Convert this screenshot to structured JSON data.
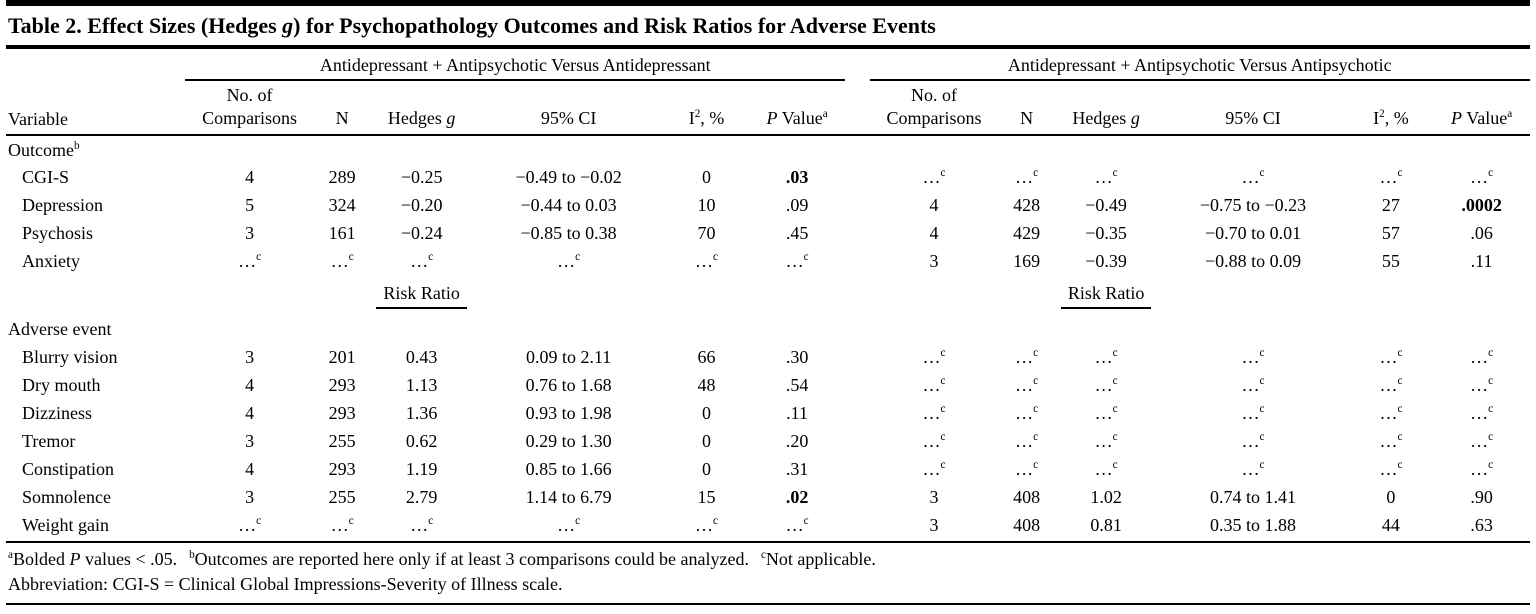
{
  "title_parts": [
    {
      "t": "Table 2. Effect Sizes (Hedges "
    },
    {
      "t": "g",
      "it": true
    },
    {
      "t": ") for Psychopathology Outcomes and Risk Ratios for Adverse Events"
    }
  ],
  "table": {
    "variable_header": "Variable",
    "groups": [
      "Antidepressant + Antipsychotic Versus Antidepressant",
      "Antidepressant + Antipsychotic Versus Antipsychotic"
    ],
    "subcolumns": [
      [
        {
          "t": "No. of\nComparisons"
        }
      ],
      [
        {
          "t": "N"
        }
      ],
      [
        {
          "t": "Hedges "
        },
        {
          "t": "g",
          "it": true
        }
      ],
      [
        {
          "t": "95% CI"
        }
      ],
      [
        {
          "t": "I"
        },
        {
          "t": "2",
          "sup": true
        },
        {
          "t": ", %"
        }
      ],
      [
        {
          "t": "P",
          "it": true
        },
        {
          "t": " Value"
        },
        {
          "t": "a",
          "sup": true
        }
      ]
    ],
    "risk_ratio_label": "Risk Ratio",
    "rows": [
      {
        "type": "section",
        "label": "Outcome^b"
      },
      {
        "type": "data",
        "label": "CGI-S",
        "cells": [
          "4",
          "289",
          "−0.25",
          "−0.49 to −0.02",
          "0",
          "*.03*",
          "…^c",
          "…^c",
          "…^c",
          "…^c",
          "…^c",
          "…^c"
        ]
      },
      {
        "type": "data",
        "label": "Depression",
        "cells": [
          "5",
          "324",
          "−0.20",
          "−0.44 to 0.03",
          "10",
          ".09",
          "4",
          "428",
          "−0.49",
          "−0.75 to −0.23",
          "27",
          "*.0002*"
        ]
      },
      {
        "type": "data",
        "label": "Psychosis",
        "cells": [
          "3",
          "161",
          "−0.24",
          "−0.85 to 0.38",
          "70",
          ".45",
          "4",
          "429",
          "−0.35",
          "−0.70 to 0.01",
          "57",
          ".06"
        ]
      },
      {
        "type": "data",
        "label": "Anxiety",
        "cells": [
          "…^c",
          "…^c",
          "…^c",
          "…^c",
          "…^c",
          "…^c",
          "3",
          "169",
          "−0.39",
          "−0.88 to 0.09",
          "55",
          ".11"
        ]
      },
      {
        "type": "riskratio"
      },
      {
        "type": "section",
        "label": "Adverse event"
      },
      {
        "type": "data",
        "label": "Blurry vision",
        "cells": [
          "3",
          "201",
          "0.43",
          "0.09 to 2.11",
          "66",
          ".30",
          "…^c",
          "…^c",
          "…^c",
          "…^c",
          "…^c",
          "…^c"
        ]
      },
      {
        "type": "data",
        "label": "Dry mouth",
        "cells": [
          "4",
          "293",
          "1.13",
          "0.76 to 1.68",
          "48",
          ".54",
          "…^c",
          "…^c",
          "…^c",
          "…^c",
          "…^c",
          "…^c"
        ]
      },
      {
        "type": "data",
        "label": "Dizziness",
        "cells": [
          "4",
          "293",
          "1.36",
          "0.93 to 1.98",
          "0",
          ".11",
          "…^c",
          "…^c",
          "…^c",
          "…^c",
          "…^c",
          "…^c"
        ]
      },
      {
        "type": "data",
        "label": "Tremor",
        "cells": [
          "3",
          "255",
          "0.62",
          "0.29 to 1.30",
          "0",
          ".20",
          "…^c",
          "…^c",
          "…^c",
          "…^c",
          "…^c",
          "…^c"
        ]
      },
      {
        "type": "data",
        "label": "Constipation",
        "cells": [
          "4",
          "293",
          "1.19",
          "0.85 to 1.66",
          "0",
          ".31",
          "…^c",
          "…^c",
          "…^c",
          "…^c",
          "…^c",
          "…^c"
        ]
      },
      {
        "type": "data",
        "label": "Somnolence",
        "cells": [
          "3",
          "255",
          "2.79",
          "1.14 to 6.79",
          "15",
          "*.02*",
          "3",
          "408",
          "1.02",
          "0.74 to 1.41",
          "0",
          ".90"
        ]
      },
      {
        "type": "data",
        "label": "Weight gain",
        "cells": [
          "…^c",
          "…^c",
          "…^c",
          "…^c",
          "…^c",
          "…^c",
          "3",
          "408",
          "0.81",
          "0.35 to 1.88",
          "44",
          ".63"
        ]
      }
    ]
  },
  "footnotes": {
    "a_sup": "a",
    "a_pre": "Bolded ",
    "a_p": "P",
    "a_post": " values < .05.",
    "b_sup": "b",
    "b_text": "Outcomes are reported here only if at least 3 comparisons could be analyzed.",
    "c_sup": "c",
    "c_text": "Not applicable.",
    "abbrev": "Abbreviation: CGI-S = Clinical Global Impressions-Severity of Illness scale."
  }
}
